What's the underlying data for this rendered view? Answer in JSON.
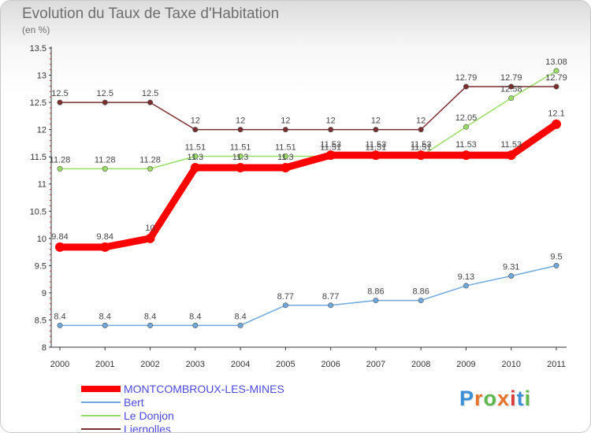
{
  "title": "Evolution du Taux de Taxe d'Habitation",
  "subtitle": "(en %)",
  "chart_data": {
    "type": "line",
    "title": "Evolution du Taux de Taxe d'Habitation",
    "ylabel": "(en %)",
    "xlabel": "",
    "ylim": [
      8,
      13.5
    ],
    "ytick_labels": [
      "8",
      "8.5",
      "9",
      "9.5",
      "10",
      "10.5",
      "11",
      "11.5",
      "12",
      "12.5",
      "13",
      "13.5"
    ],
    "x": [
      "2000",
      "2001",
      "2002",
      "2003",
      "2004",
      "2005",
      "2006",
      "2007",
      "2008",
      "2009",
      "2010",
      "2011"
    ],
    "series": [
      {
        "name": "MONTCOMBROUX-LES-MINES",
        "color": "#ff0000",
        "values": [
          9.84,
          9.84,
          10,
          11.3,
          11.3,
          11.3,
          11.53,
          11.53,
          11.53,
          11.53,
          11.53,
          12.1
        ],
        "labels": [
          "9.84",
          "9.84",
          "10",
          "11.3",
          "11.3",
          "11.3",
          "11.53",
          "11.53",
          "11.53",
          "11.53",
          "11.53",
          "12.1"
        ]
      },
      {
        "name": "Bert",
        "color": "#6fa8dc",
        "values": [
          8.4,
          8.4,
          8.4,
          8.4,
          8.4,
          8.77,
          8.77,
          8.86,
          8.86,
          9.13,
          9.31,
          9.5
        ],
        "labels": [
          "8.4",
          "8.4",
          "8.4",
          "8.4",
          "8.4",
          "8.77",
          "8.77",
          "8.86",
          "8.86",
          "9.13",
          "9.31",
          "9.5"
        ]
      },
      {
        "name": "Le Donjon",
        "color": "#99dd66",
        "values": [
          11.28,
          11.28,
          11.28,
          11.51,
          11.51,
          11.51,
          11.51,
          11.51,
          11.51,
          12.05,
          12.58,
          13.08
        ],
        "labels": [
          "11.28",
          "11.28",
          "11.28",
          "11.51",
          "11.51",
          "11.51",
          "11.51",
          "11.51",
          "11.51",
          "12.05",
          "12.58",
          "13.08"
        ]
      },
      {
        "name": "Liernolles",
        "color": "#7a2e2e",
        "values": [
          12.5,
          12.5,
          12.5,
          12,
          12,
          12,
          12,
          12,
          12,
          12.79,
          12.79,
          12.79
        ],
        "labels": [
          "12.5",
          "12.5",
          "12.5",
          "12",
          "12",
          "12",
          "12",
          "12",
          "12",
          "12.79",
          "12.79",
          "12.79"
        ]
      }
    ]
  },
  "legend": [
    {
      "label": "MONTCOMBROUX-LES-MINES",
      "color": "#ff0000"
    },
    {
      "label": "Bert",
      "color": "#6fa8dc"
    },
    {
      "label": "Le Donjon",
      "color": "#99dd66"
    },
    {
      "label": "Liernolles",
      "color": "#7a2e2e"
    }
  ],
  "logo": {
    "letters": [
      "P",
      "r",
      "o",
      "x",
      "i",
      "t",
      "i"
    ],
    "colors": [
      "#3a8fd6",
      "#e8742c",
      "#5bb84a",
      "#e8742c",
      "#d93b3b",
      "#3a8fd6",
      "#5bb84a"
    ]
  }
}
